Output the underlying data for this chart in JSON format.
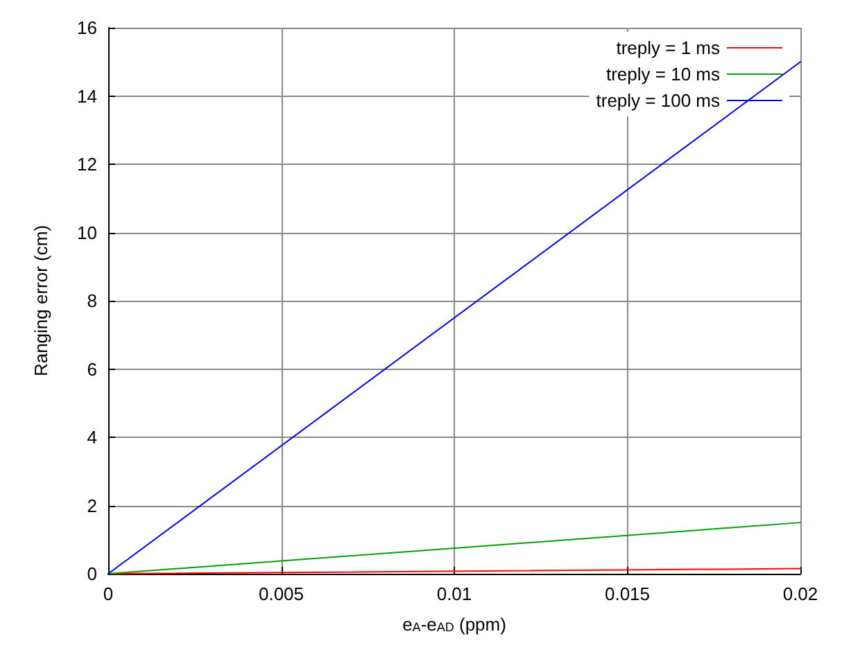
{
  "chart_data": {
    "type": "line",
    "xlabel": "e$_{A}$-e$_{AD}$ (ppm)",
    "ylabel": "Ranging error (cm)",
    "x": [
      0,
      0.02
    ],
    "series": [
      {
        "name": "treply = 1 ms",
        "color": "#ff0000",
        "values": [
          0,
          0.15
        ]
      },
      {
        "name": "treply = 10 ms",
        "color": "#00a000",
        "values": [
          0,
          1.5
        ]
      },
      {
        "name": "treply = 100 ms",
        "color": "#0000ff",
        "values": [
          0,
          15
        ]
      }
    ],
    "xlim": [
      0,
      0.02
    ],
    "xticks": [
      0,
      0.005,
      0.01,
      0.015,
      0.02
    ],
    "ylim": [
      0,
      16
    ],
    "yticks": [
      0,
      2,
      4,
      6,
      8,
      10,
      12,
      14,
      16
    ],
    "grid": true,
    "legend": "top right",
    "marker": "none",
    "line_style": "solid"
  }
}
